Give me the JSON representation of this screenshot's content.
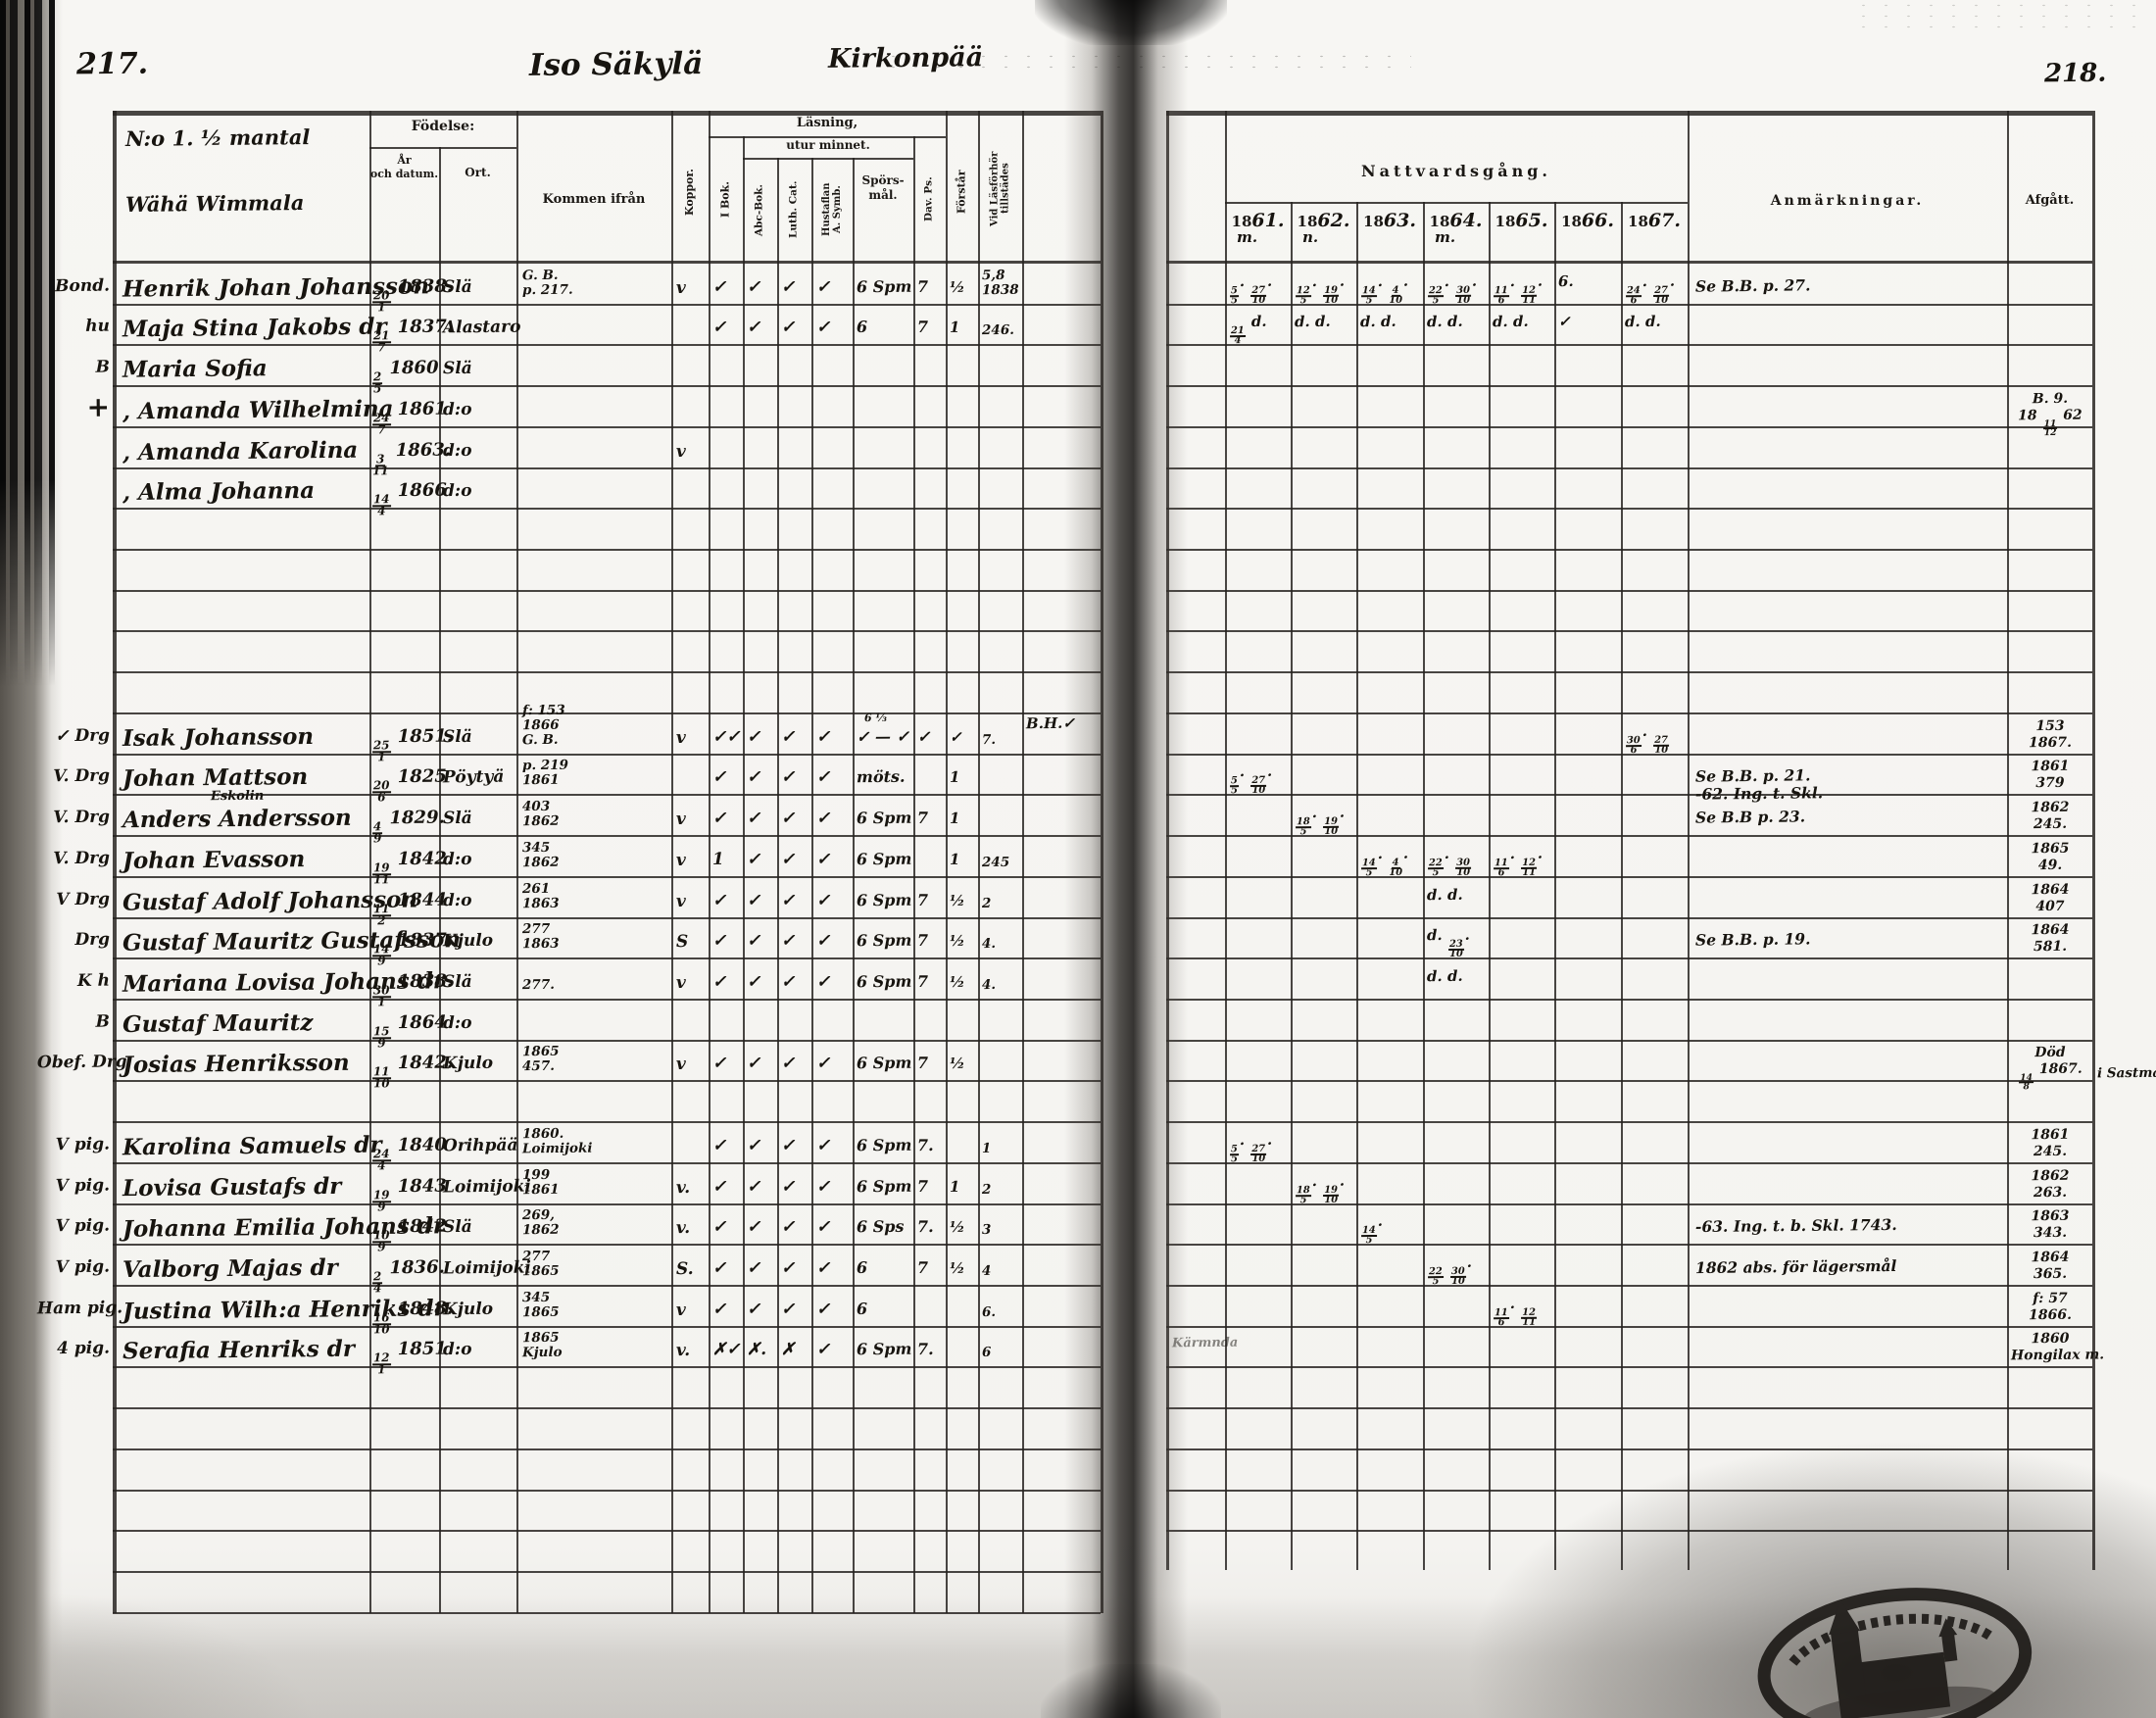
{
  "page_left": {
    "number": "217.",
    "title_script": "Iso Säkylä",
    "title_script_2": "Kirkonpää",
    "header": {
      "household": "N:o 1.  ½ mantal",
      "village": "Wähä Wimmala",
      "fodelse": "Födelse:",
      "ar": "År\noch datum.",
      "ort": "Ort.",
      "kommen": "Kommen ifrån",
      "koppor": "Koppor.",
      "lasning": "Läsning,",
      "utur": "utur minnet.",
      "ibok": "I Bok.",
      "abc": "Abc-Bok.",
      "luth": "Luth. Cat.",
      "hust": "Hustaflan\nA. Symb.",
      "spors": "Spörs-\nmål.",
      "dav": "Dav. Ps.",
      "forstar": "Förstår",
      "vidlas": "Vid Läsförhör\ntillstädes"
    }
  },
  "page_right": {
    "number": "218.",
    "communion_title": "Nattvardsgång.",
    "years": [
      {
        "p": "18",
        "s": "61.",
        "sub": "m."
      },
      {
        "p": "18",
        "s": "62.",
        "sub": "n."
      },
      {
        "p": "18",
        "s": "63."
      },
      {
        "p": "18",
        "s": "64.",
        "sub": "m."
      },
      {
        "p": "18",
        "s": "65."
      },
      {
        "p": "18",
        "s": "66."
      },
      {
        "p": "18",
        "s": "67."
      }
    ],
    "remarks_title": "Anmärkningar.",
    "departed_title": "Afgått."
  },
  "rows": [
    {
      "margin": "Bond.",
      "name": "Henrik Johan Johansson",
      "birth": "20/1 1838.",
      "ort": "Slä",
      "kommen": [
        "G. B.",
        "p. 217."
      ],
      "koppor": "v",
      "marks": [
        "✓",
        "✓",
        "✓",
        "✓"
      ],
      "sporsmal": "6 Spm",
      "dav": "7",
      "forstar": "½",
      "vidlas": [
        "5,8",
        "1838"
      ],
      "natt": [
        "5/5. 27/10.",
        "12/5. 19/10.",
        "14/5. 4/10.",
        "22/5. 30/10.",
        "11/6. 12/11.",
        "6.",
        "24/6. 27/10."
      ],
      "anm": [
        "Se B.B. p. 27."
      ]
    },
    {
      "margin": "hu",
      "name": "Maja Stina Jakobs dr",
      "birth": "21/7 1837.",
      "ort": "Alastaro",
      "marks": [
        "✓",
        "✓",
        "✓",
        "✓"
      ],
      "sporsmal": "6",
      "dav": "7",
      "forstar": "1",
      "vidlas": [
        "246."
      ],
      "natt": [
        "21/4 d.",
        "d. d.",
        "d. d.",
        "d. d.",
        "d. d.",
        "✓",
        "d. d."
      ]
    },
    {
      "margin": "B",
      "name": "Maria Sofia",
      "birth": "2/5 1860",
      "ort": "Slä"
    },
    {
      "margin": "+",
      "name": ", Amanda Wilhelmina",
      "birth": "24/7 1861",
      "ort": "d:o",
      "afgatt": [
        "B. 9.",
        "18 11/12 62"
      ]
    },
    {
      "name": ", Amanda Karolina",
      "birth": "3/11 1863.",
      "ort": "d:o",
      "koppor": "v"
    },
    {
      "name": ", Alma Johanna",
      "birth": "14/4 1866",
      "ort": "d:o"
    },
    {
      "empty": true
    },
    {
      "empty": true
    },
    {
      "empty": true
    },
    {
      "empty": true
    },
    {
      "empty": true
    },
    {
      "margin": "✓ Drg",
      "name": "Isak Johansson",
      "birth": "25/1 1851.",
      "ort": "Slä",
      "kommen": [
        "f: 153",
        "1866",
        "G. B."
      ],
      "koppor": "v",
      "marks": [
        "✓✓",
        "✓",
        "✓",
        "✓"
      ],
      "sporsmal": "✓ — ✓",
      "sporsmal_sup": "6 ⅓",
      "dav": "✓",
      "forstar": "✓",
      "vidlas": [
        "7."
      ],
      "extra": "B.H.✓",
      "natt": [
        "",
        "",
        "",
        "",
        "",
        "",
        "30/6. 27/10"
      ],
      "afgatt": [
        "153",
        "1867."
      ]
    },
    {
      "margin": "V. Drg",
      "name": "Johan Mattson",
      "birth": "20/6 1825",
      "ort": "Pöytyä",
      "kommen": [
        "p. 219",
        "1861"
      ],
      "marks": [
        "✓",
        "✓",
        "✓",
        "✓"
      ],
      "sporsmal": "möts.",
      "forstar": "1",
      "natt": [
        "5/5. 27/10.",
        "",
        "",
        "",
        "",
        "",
        ""
      ],
      "anm": [
        "Se B.B. p. 21.",
        "-62. Ing. t. Skl."
      ],
      "afgatt": [
        "1861",
        "379"
      ]
    },
    {
      "margin": "V. Drg",
      "name": "Anders Andersson",
      "sup": "Eskolin",
      "birth": "4/9 1829.",
      "ort": "Slä",
      "kommen": [
        "403",
        "1862"
      ],
      "koppor": "v",
      "marks": [
        "✓",
        "✓",
        "✓",
        "✓"
      ],
      "sporsmal": "6 Spm",
      "dav": "7",
      "forstar": "1",
      "natt": [
        "",
        "18/5. 19/10.",
        "",
        "",
        "",
        "",
        ""
      ],
      "anm": [
        "Se B.B p. 23."
      ],
      "afgatt": [
        "1862",
        "245."
      ]
    },
    {
      "margin": "V. Drg",
      "name": "Johan Evasson",
      "birth": "19/11 1842.",
      "ort": "d:o",
      "kommen": [
        "345",
        "1862"
      ],
      "koppor": "v",
      "marks": [
        "1",
        "✓",
        "✓",
        "✓"
      ],
      "sporsmal": "6 Spm",
      "forstar": "1",
      "vidlas": [
        "245"
      ],
      "natt": [
        "",
        "",
        "14/5. 4/10.",
        "22/5. 30/10",
        "11/6. 12/11.",
        "",
        ""
      ],
      "afgatt": [
        "1865",
        "49."
      ]
    },
    {
      "margin": "V Drg",
      "name": "Gustaf Adolf Johansson",
      "birth": "11/2 1844",
      "ort": "d:o",
      "kommen": [
        "261",
        "1863"
      ],
      "koppor": "v",
      "marks": [
        "✓",
        "✓",
        "✓",
        "✓"
      ],
      "sporsmal": "6 Spm",
      "dav": "7",
      "forstar": "½",
      "vidlas": [
        "2"
      ],
      "natt": [
        "",
        "",
        "",
        "d.  d.",
        "",
        "",
        ""
      ],
      "afgatt": [
        "1864",
        "407"
      ]
    },
    {
      "margin": "Drg",
      "name": "Gustaf Mauritz Gustafsson",
      "birth": "14/9 1837.",
      "ort": "Kjulo",
      "kommen": [
        "277",
        "1863"
      ],
      "koppor": "S",
      "marks": [
        "✓",
        "✓",
        "✓",
        "✓"
      ],
      "sporsmal": "6 Spm",
      "dav": "7",
      "forstar": "½",
      "vidlas": [
        "4."
      ],
      "natt": [
        "",
        "",
        "",
        "d. 23/10.",
        "",
        "",
        ""
      ],
      "anm": [
        "Se B.B. p. 19."
      ],
      "afgatt": [
        "1864",
        "581."
      ]
    },
    {
      "margin": "K  h",
      "name": "Mariana Lovisa Johans dr",
      "birth": "30/1 1838.",
      "ort": "Slä",
      "kommen": [
        "277."
      ],
      "koppor": "v",
      "marks": [
        "✓",
        "✓",
        "✓",
        "✓"
      ],
      "sporsmal": "6 Spm",
      "dav": "7",
      "forstar": "½",
      "vidlas": [
        "4."
      ],
      "natt": [
        "",
        "",
        "",
        "d.  d.",
        "",
        "",
        ""
      ]
    },
    {
      "margin": "B",
      "name": "Gustaf Mauritz",
      "birth": "15/9 1864",
      "ort": "d:o"
    },
    {
      "margin": "Obef. Drg",
      "name": "Josias Henriksson",
      "birth": "11/10 1842.",
      "ort": "Kjulo",
      "kommen": [
        "1865",
        "457."
      ],
      "koppor": "v",
      "marks": [
        "✓",
        "✓",
        "✓",
        "✓"
      ],
      "sporsmal": "6 Spm",
      "dav": "7",
      "forstar": "½",
      "afgatt": [
        "Död",
        "14/8 1867."
      ],
      "anote": "i Sastmala"
    },
    {
      "empty": true
    },
    {
      "margin": "V pig.",
      "name": "Karolina Samuels dr",
      "birth": "24/4 1840",
      "ort": "Orihpää",
      "kommen": [
        "1860.",
        "Loimijoki"
      ],
      "marks": [
        "✓",
        "✓",
        "✓",
        "✓"
      ],
      "sporsmal": "6 Spm",
      "dav": "7.",
      "vidlas": [
        "1"
      ],
      "natt": [
        "5/5. 27/10.",
        "",
        "",
        "",
        "",
        "",
        ""
      ],
      "afgatt": [
        "1861",
        "245."
      ]
    },
    {
      "margin": "V pig.",
      "name": "Lovisa Gustafs dr",
      "birth": "19/9 1843",
      "ort": "Loimijoki",
      "kommen": [
        "199",
        "1861"
      ],
      "koppor": "v.",
      "marks": [
        "✓",
        "✓",
        "✓",
        "✓"
      ],
      "sporsmal": "6 Spm",
      "dav": "7",
      "forstar": "1",
      "vidlas": [
        "2"
      ],
      "natt": [
        "",
        "18/5. 19/10.",
        "",
        "",
        "",
        "",
        ""
      ],
      "afgatt": [
        "1862",
        "263."
      ]
    },
    {
      "margin": "V pig.",
      "name": "Johanna Emilia Johans dr",
      "birth": "10/9 1842",
      "ort": "Slä",
      "kommen": [
        "269,",
        "1862"
      ],
      "koppor": "v.",
      "marks": [
        "✓",
        "✓",
        "✓",
        "✓"
      ],
      "sporsmal": "6 Sps",
      "dav": "7.",
      "forstar": "½",
      "vidlas": [
        "3"
      ],
      "natt": [
        "",
        "",
        "14/5.",
        "",
        "",
        "",
        ""
      ],
      "anm": [
        "-63. Ing. t. b. Skl. 1743."
      ],
      "afgatt": [
        "1863",
        "343."
      ]
    },
    {
      "margin": "V pig.",
      "name": "Valborg Majas dr",
      "birth": "2/4 1836.",
      "ort": "Loimijoki",
      "kommen": [
        "277",
        "1865"
      ],
      "koppor": "S.",
      "marks": [
        "✓",
        "✓",
        "✓",
        "✓"
      ],
      "sporsmal": "6",
      "dav": "7",
      "forstar": "½",
      "vidlas": [
        "4"
      ],
      "natt": [
        "",
        "",
        "",
        "22/5 30/10.",
        "",
        "",
        ""
      ],
      "anm": [
        "1862 abs. för lägersmål"
      ],
      "afgatt": [
        "1864",
        "365."
      ]
    },
    {
      "margin": "Ham pig.",
      "name": "Justina Wilh:a Henriks dr",
      "birth": "16/10 1848.",
      "ort": "Kjulo",
      "kommen": [
        "345",
        "1865"
      ],
      "koppor": "v",
      "marks": [
        "✓",
        "✓",
        "✓",
        "✓"
      ],
      "sporsmal": "6",
      "vidlas": [
        "6."
      ],
      "natt": [
        "",
        "",
        "",
        "",
        "11/6. 12/11",
        "",
        ""
      ],
      "afgatt": [
        "f: 57",
        "1866."
      ]
    },
    {
      "margin": "4 pig.",
      "name": "Serafia Henriks dr",
      "birth": "12/1 1851",
      "ort": "d:o",
      "kommen": [
        "1865",
        "Kjulo"
      ],
      "koppor": "v.",
      "marks": [
        "✗✓",
        "✗.",
        "✗",
        "✓"
      ],
      "sporsmal": "6 Spm",
      "dav": "7.",
      "vidlas": [
        "6"
      ],
      "afgatt": [
        "1860",
        "Hongilax m."
      ],
      "rnote": "Kärmnda"
    },
    {
      "empty": true
    },
    {
      "empty": true
    },
    {
      "empty": true
    },
    {
      "empty": true
    },
    {
      "empty": true
    },
    {
      "empty": true
    }
  ]
}
